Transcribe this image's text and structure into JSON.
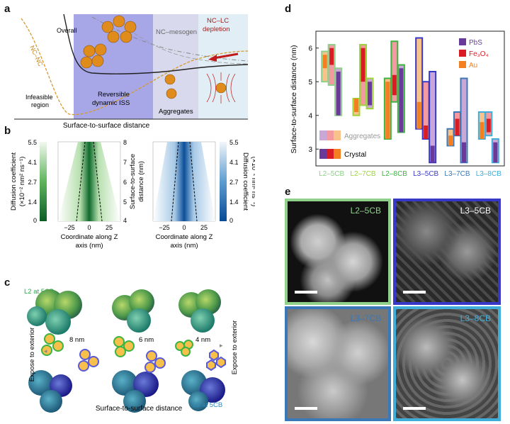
{
  "panels": {
    "a": "a",
    "b": "b",
    "c": "c",
    "d": "d",
    "e": "e"
  },
  "panel_a": {
    "xlabel": "Surface-to-surface distance",
    "curve_labels": {
      "overall": "Overall",
      "nc_nc": "NC–NC"
    },
    "region_labels": {
      "infeasible": "Infeasible region",
      "reversible": "Reversible dynamic ISS",
      "mesogen": "NC–mesogen",
      "aggregates": "Aggregates",
      "depletion": "NC–LC depletion"
    },
    "colors": {
      "reversible": "#a7a7e8",
      "mesogen": "#d9d9ee",
      "depletion": "#e2eef5",
      "nc_nc_curve": "#d89a2e",
      "depletion_text": "#a02020"
    }
  },
  "panel_b": {
    "left": {
      "ylabel": "Diffusion coefficient (×10⁻² nm² ns⁻¹)",
      "cbar_ticks": [
        "5.5",
        "4.1",
        "2.7",
        "1.4",
        "0"
      ],
      "xticks": [
        "−25",
        "0",
        "25"
      ],
      "xlabel": "Coordinate along Z axis (nm)",
      "right_axis_label": "Surface-to-surface distance (nm)",
      "right_ticks": [
        "8",
        "7",
        "6",
        "5",
        "4"
      ]
    },
    "right": {
      "ylabel": "Diffusion coefficient (×10⁻² nm² ns⁻¹)",
      "cbar_ticks": [
        "5.5",
        "4.1",
        "2.7",
        "1.4",
        "0"
      ],
      "xticks": [
        "−25",
        "0",
        "25"
      ],
      "xlabel": "Coordinate along Z axis (nm)"
    }
  },
  "panel_c": {
    "top_label": "L2 at 5CB",
    "bottom_label": "L3 at 5CB",
    "distances": [
      "8 nm",
      "6 nm",
      "4 nm"
    ],
    "expose_left": "Expose to exterior",
    "expose_right": "Expose to exterior",
    "xlabel": "Surface-to-surface distance"
  },
  "chart_data": {
    "type": "bar",
    "ylabel": "Surface-to-surface distance (nm)",
    "ylim": [
      2.5,
      6.5
    ],
    "yticks": [
      3,
      4,
      5,
      6
    ],
    "categories": [
      {
        "name": "L2–5CB",
        "color": "#8fd08a"
      },
      {
        "name": "L2–7CB",
        "color": "#9ed43a"
      },
      {
        "name": "L2–8CB",
        "color": "#3cb441"
      },
      {
        "name": "L3–5CB",
        "color": "#3838c8"
      },
      {
        "name": "L3–7CB",
        "color": "#3a78b8"
      },
      {
        "name": "L3–8CB",
        "color": "#40aed8"
      }
    ],
    "legend": {
      "materials": [
        {
          "name": "PbS",
          "color": "#6a3a9a"
        },
        {
          "name": "Fe₃O₄",
          "color": "#d91c24"
        },
        {
          "name": "Au",
          "color": "#f47f20"
        }
      ],
      "aggregates": "Aggregates",
      "crystal": "Crystal",
      "position": "top-right"
    },
    "ranges": [
      {
        "category": "L2–5CB",
        "material": "Au",
        "aggregate": [
          5.0,
          5.9
        ],
        "crystal": [
          5.4,
          5.8
        ]
      },
      {
        "category": "L2–5CB",
        "material": "Fe₃O₄",
        "aggregate": [
          4.9,
          6.1
        ],
        "crystal": [
          5.5,
          6.0
        ]
      },
      {
        "category": "L2–5CB",
        "material": "PbS",
        "aggregate": [
          4.0,
          5.4
        ],
        "crystal": [
          4.0,
          5.3
        ]
      },
      {
        "category": "L2–7CB",
        "material": "Au",
        "aggregate": [
          4.0,
          4.5
        ],
        "crystal": [
          4.1,
          4.5
        ]
      },
      {
        "category": "L2–7CB",
        "material": "Fe₃O₄",
        "aggregate": [
          4.3,
          6.1
        ],
        "crystal": [
          5.0,
          6.0
        ]
      },
      {
        "category": "L2–7CB",
        "material": "PbS",
        "aggregate": [
          4.2,
          5.1
        ],
        "crystal": [
          4.3,
          5.0
        ]
      },
      {
        "category": "L2–8CB",
        "material": "Au",
        "aggregate": [
          3.3,
          5.1
        ],
        "crystal": [
          3.3,
          5.0
        ]
      },
      {
        "category": "L2–8CB",
        "material": "Fe₃O₄",
        "aggregate": [
          4.4,
          6.2
        ],
        "crystal": [
          4.6,
          5.2
        ]
      },
      {
        "category": "L2–8CB",
        "material": "PbS",
        "aggregate": [
          3.5,
          5.5
        ],
        "crystal": [
          3.5,
          5.4
        ]
      },
      {
        "category": "L3–5CB",
        "material": "Au",
        "aggregate": [
          3.6,
          6.3
        ],
        "crystal": [
          3.6,
          4.4
        ]
      },
      {
        "category": "L3–5CB",
        "material": "Fe₃O₄",
        "aggregate": [
          3.3,
          5.0
        ],
        "crystal": [
          3.3,
          3.7
        ]
      },
      {
        "category": "L3–5CB",
        "material": "PbS",
        "aggregate": [
          2.6,
          5.3
        ],
        "crystal": [
          2.6,
          3.1
        ]
      },
      {
        "category": "L3–7CB",
        "material": "Au",
        "aggregate": [
          3.1,
          3.6
        ],
        "crystal": [
          3.1,
          3.4
        ]
      },
      {
        "category": "L3–7CB",
        "material": "Fe₃O₄",
        "aggregate": [
          3.4,
          4.1
        ],
        "crystal": [
          3.4,
          3.9
        ]
      },
      {
        "category": "L3–7CB",
        "material": "PbS",
        "aggregate": [
          2.6,
          5.1
        ],
        "crystal": [
          2.6,
          3.2
        ]
      },
      {
        "category": "L3–8CB",
        "material": "Au",
        "aggregate": [
          3.3,
          4.1
        ],
        "crystal": [
          3.3,
          3.8
        ]
      },
      {
        "category": "L3–8CB",
        "material": "Fe₃O₄",
        "aggregate": [
          3.4,
          4.1
        ],
        "crystal": [
          3.5,
          3.9
        ]
      },
      {
        "category": "L3–8CB",
        "material": "PbS",
        "aggregate": [
          2.6,
          3.3
        ],
        "crystal": [
          2.6,
          3.2
        ]
      }
    ]
  },
  "panel_e": {
    "images": [
      {
        "label": "L2–5CB",
        "border": "#8fd08a"
      },
      {
        "label": "L3–5CB",
        "border": "#3838c8"
      },
      {
        "label": "L3–7CB",
        "border": "#3a78b8"
      },
      {
        "label": "L3–8CB",
        "border": "#40aed8"
      }
    ]
  }
}
